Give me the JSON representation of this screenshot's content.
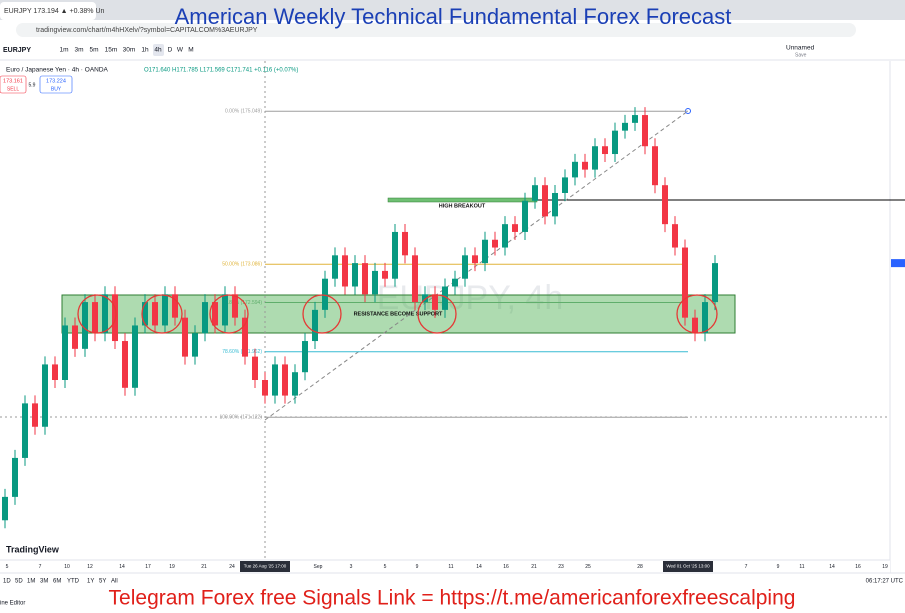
{
  "browser": {
    "tab_title": "EURJPY 173.194 ▲ +0.38% Un",
    "url": "tradingview.com/chart/m4hHXelv/?symbol=CAPITALCOM%3AEURJPY"
  },
  "overlay_title": "American Weekly Technical Fundamental Forex Forecast",
  "toolbar": {
    "symbol": "EURJPY",
    "intervals": [
      "1m",
      "3m",
      "5m",
      "15m",
      "30m",
      "1h",
      "4h",
      "D",
      "W",
      "M"
    ],
    "layout_name": "Unnamed",
    "save": "Save"
  },
  "legend": {
    "instrument": "Euro / Japanese Yen · 4h · OANDA",
    "ohlc": "O171.640 H171.785 L171.569 C171.741 +0.116 (+0.07%)",
    "sell_price": "173.161",
    "sell": "SELL",
    "spread": "5.9",
    "buy_price": "173.224",
    "buy": "BUY"
  },
  "chart_data": {
    "type": "candlestick",
    "watermark": "EURJPY, 4h",
    "ylim": [
      169.29,
      175.45
    ],
    "up_color": "#089981",
    "down_color": "#f23645",
    "closes": [
      170.1,
      170.6,
      171.3,
      171.0,
      171.8,
      171.6,
      172.3,
      172.0,
      172.6,
      172.2,
      172.7,
      172.1,
      171.5,
      172.3,
      172.6,
      172.3,
      172.7,
      172.4,
      171.9,
      172.2,
      172.6,
      172.3,
      172.7,
      172.4,
      171.9,
      171.6,
      171.4,
      171.8,
      171.4,
      171.7,
      172.1,
      172.5,
      172.9,
      173.2,
      172.8,
      173.1,
      172.7,
      173.0,
      172.9,
      173.5,
      173.2,
      172.6,
      172.7,
      172.5,
      172.8,
      172.9,
      173.2,
      173.1,
      173.4,
      173.3,
      173.6,
      173.5,
      173.9,
      174.1,
      173.7,
      174.0,
      174.2,
      174.4,
      174.3,
      174.6,
      174.5,
      174.8,
      174.9,
      175.0,
      174.6,
      174.1,
      173.6,
      173.3,
      172.4,
      172.2,
      172.6,
      173.1
    ],
    "fib_levels": [
      {
        "label": "0.00% (175.049)",
        "value": 175.049,
        "color": "#9e9e9e"
      },
      {
        "label": "50.00% (173.086)",
        "value": 173.086,
        "color": "#e0b43a"
      },
      {
        "label": "61.80% (172.594)",
        "value": 172.594,
        "color": "#5fae6b"
      },
      {
        "label": "78.60% (171.962)",
        "value": 171.962,
        "color": "#38bcd3"
      },
      {
        "label": "100.00% (171.122)",
        "value": 171.122,
        "color": "#9e9e9e"
      }
    ],
    "annotations": [
      "HIGH BREAKOUT",
      "RESISTANCE BECOME SUPPORT"
    ],
    "x_labels": [
      "5",
      "7",
      "10",
      "12",
      "14",
      "17",
      "19",
      "21",
      "24",
      "Tue 26 Aug '25  17:00",
      "Sep",
      "3",
      "5",
      "9",
      "11",
      "14",
      "16",
      "21",
      "23",
      "25",
      "28",
      "Wed 01 Oct '25  13:00",
      "7",
      "9",
      "11",
      "14",
      "16",
      "19"
    ]
  },
  "footer": {
    "brand": "TradingView",
    "ranges": [
      "1D",
      "5D",
      "1M",
      "3M",
      "6M",
      "YTD",
      "1Y",
      "5Y",
      "All"
    ],
    "clock": "06:17:27 UTC",
    "panel": "ine Editor",
    "telegram": "Telegram Forex free Signals  Link =  https://t.me/americanforexfreescalping"
  }
}
